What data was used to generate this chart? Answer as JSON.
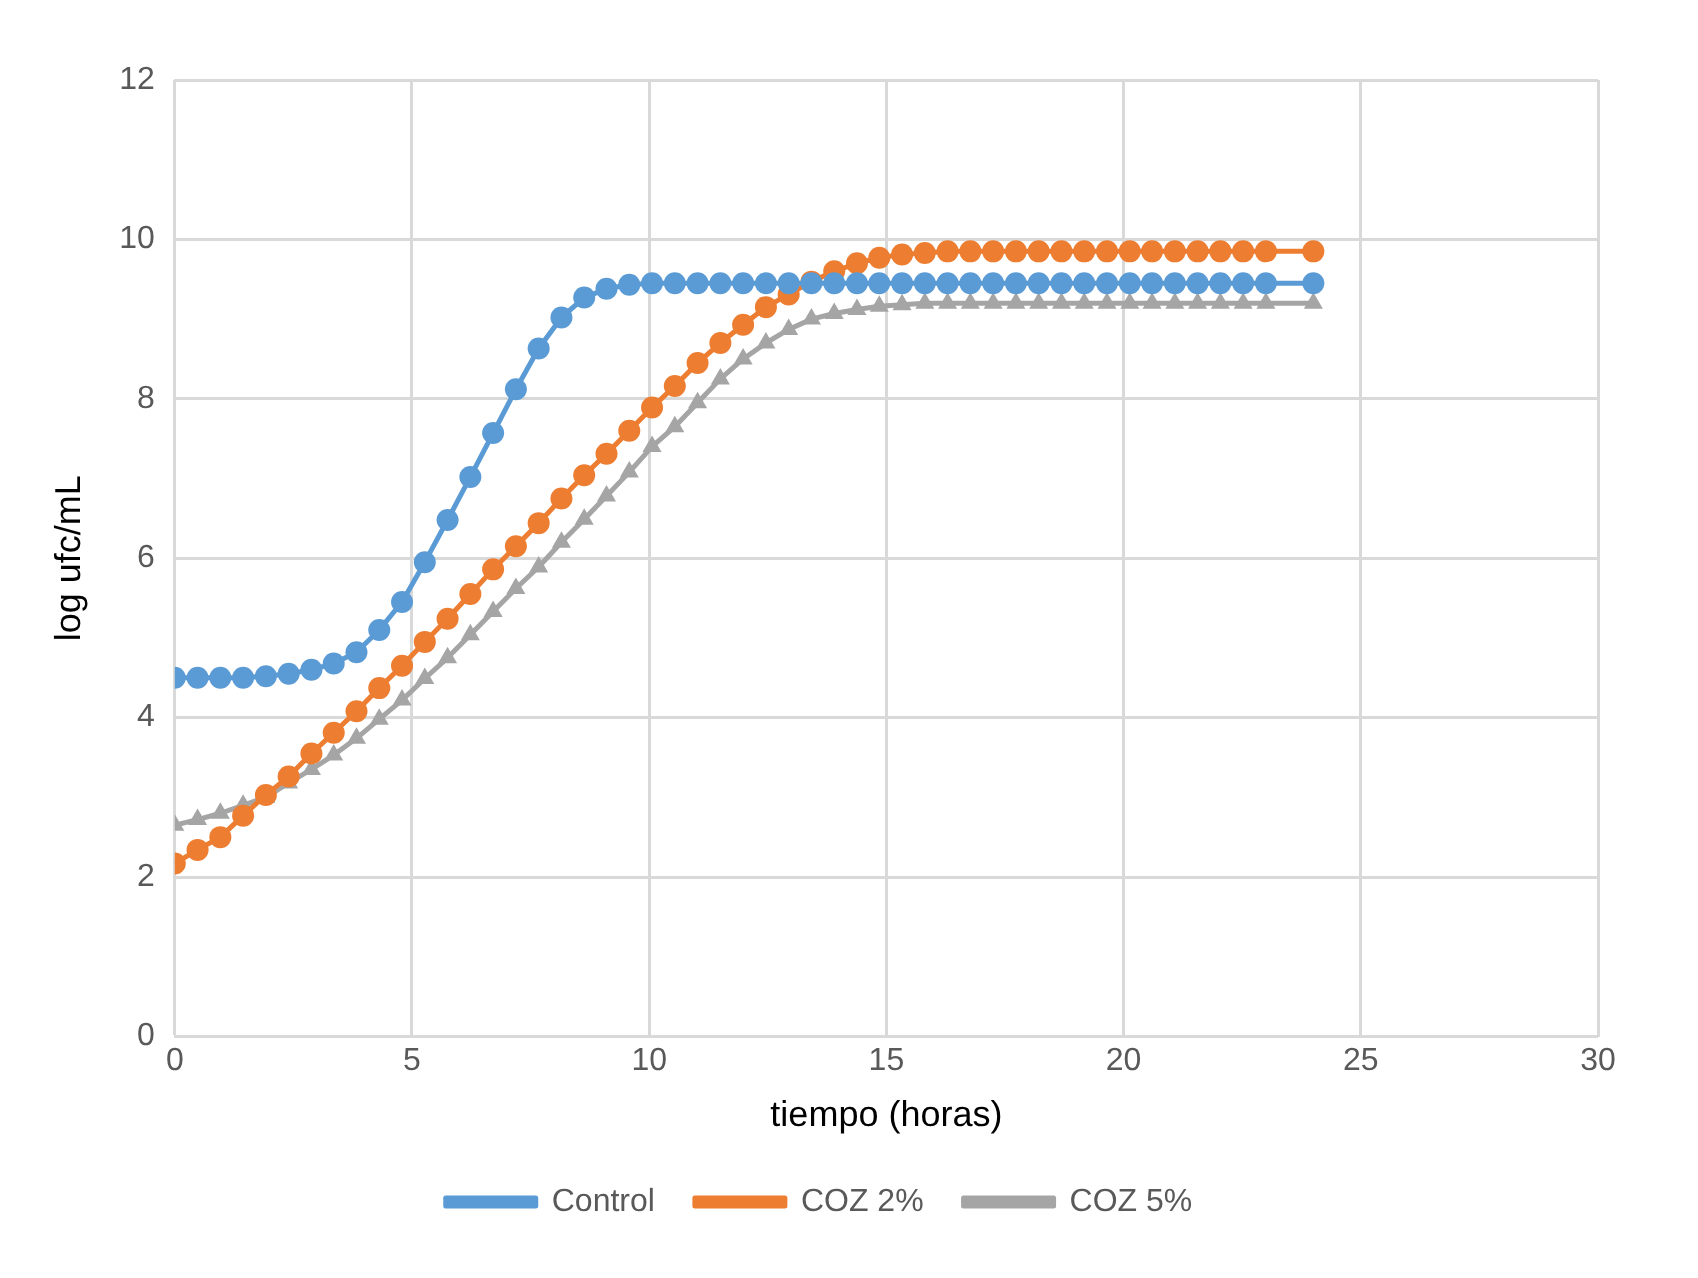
{
  "chart_data": {
    "type": "line",
    "xlabel": "tiempo (horas)",
    "ylabel": "log ufc/mL",
    "x": [
      0,
      0.48,
      0.96,
      1.44,
      1.92,
      2.4,
      2.88,
      3.35,
      3.83,
      4.31,
      4.79,
      5.27,
      5.75,
      6.23,
      6.71,
      7.19,
      7.67,
      8.15,
      8.63,
      9.1,
      9.58,
      10.06,
      10.54,
      11.02,
      11.5,
      11.98,
      12.46,
      12.94,
      13.42,
      13.9,
      14.38,
      14.85,
      15.33,
      15.81,
      16.29,
      16.77,
      17.25,
      17.73,
      18.21,
      18.69,
      19.17,
      19.65,
      20.13,
      20.6,
      21.08,
      21.56,
      22.04,
      22.52,
      23,
      24
    ],
    "series": [
      {
        "name": "Control",
        "color": "#5b9bd5",
        "marker": "circle",
        "values": [
          4.5,
          4.5,
          4.5,
          4.5,
          4.52,
          4.55,
          4.6,
          4.68,
          4.82,
          5.1,
          5.45,
          5.95,
          6.48,
          7.02,
          7.57,
          8.12,
          8.63,
          9.02,
          9.27,
          9.38,
          9.43,
          9.45,
          9.45,
          9.45,
          9.45,
          9.45,
          9.45,
          9.45,
          9.45,
          9.45,
          9.45,
          9.45,
          9.45,
          9.45,
          9.45,
          9.45,
          9.45,
          9.45,
          9.45,
          9.45,
          9.45,
          9.45,
          9.45,
          9.45,
          9.45,
          9.45,
          9.45,
          9.45,
          9.45,
          9.45
        ]
      },
      {
        "name": "COZ 2%",
        "color": "#ed7d31",
        "marker": "circle",
        "values": [
          2.17,
          2.34,
          2.5,
          2.77,
          3.03,
          3.26,
          3.55,
          3.81,
          4.08,
          4.37,
          4.65,
          4.95,
          5.24,
          5.55,
          5.86,
          6.15,
          6.44,
          6.75,
          7.04,
          7.31,
          7.6,
          7.89,
          8.16,
          8.45,
          8.7,
          8.93,
          9.15,
          9.31,
          9.47,
          9.6,
          9.7,
          9.77,
          9.81,
          9.83,
          9.85,
          9.85,
          9.85,
          9.85,
          9.85,
          9.85,
          9.85,
          9.85,
          9.85,
          9.85,
          9.85,
          9.85,
          9.85,
          9.85,
          9.85,
          9.85
        ]
      },
      {
        "name": "COZ 5%",
        "color": "#a5a5a5",
        "marker": "triangle",
        "values": [
          2.65,
          2.72,
          2.8,
          2.9,
          3.0,
          3.18,
          3.35,
          3.53,
          3.74,
          3.98,
          4.22,
          4.49,
          4.75,
          5.04,
          5.33,
          5.62,
          5.89,
          6.2,
          6.49,
          6.78,
          7.08,
          7.4,
          7.65,
          7.95,
          8.25,
          8.5,
          8.7,
          8.87,
          9.0,
          9.07,
          9.12,
          9.16,
          9.18,
          9.2,
          9.2,
          9.2,
          9.2,
          9.2,
          9.2,
          9.2,
          9.2,
          9.2,
          9.2,
          9.2,
          9.2,
          9.2,
          9.2,
          9.2,
          9.2,
          9.2
        ]
      }
    ],
    "xlim": [
      0,
      30
    ],
    "xticks": [
      0,
      5,
      10,
      15,
      20,
      25,
      30
    ],
    "ylim": [
      0,
      12
    ],
    "yticks": [
      0,
      2,
      4,
      6,
      8,
      10,
      12
    ],
    "grid": true,
    "legend": "bottom",
    "line_style": "solid"
  }
}
